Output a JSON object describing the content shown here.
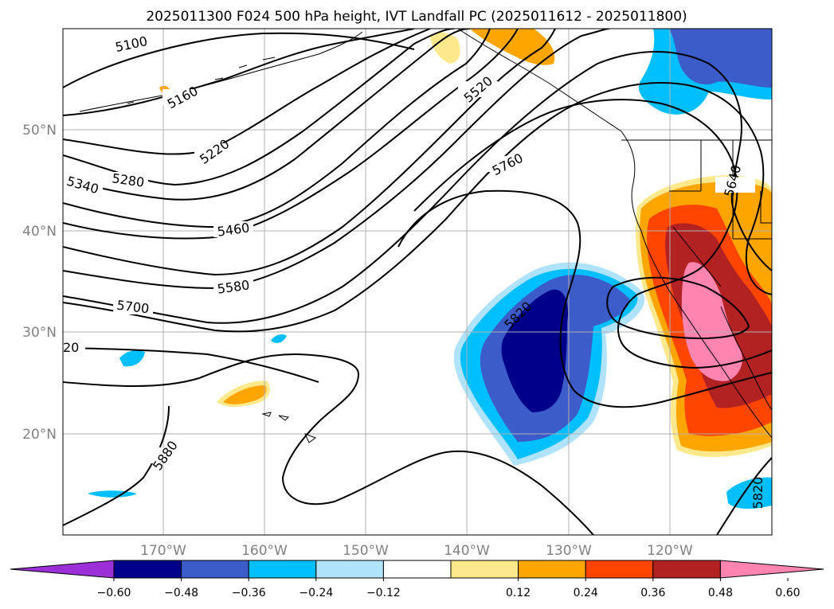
{
  "title": "2025011300 F024 500 hPa height, IVT Landfall PC (2025011612 - 2025011800)",
  "map": {
    "lon_range": [
      -180,
      -110
    ],
    "lat_range": [
      10,
      60
    ],
    "lat_labels": [
      "50°N",
      "40°N",
      "30°N",
      "20°N"
    ],
    "lon_labels": [
      "170°W",
      "160°W",
      "150°W",
      "140°W",
      "130°W",
      "120°W"
    ],
    "contour_labels": [
      "5100",
      "5160",
      "5220",
      "5280",
      "5340",
      "5460",
      "5520",
      "5580",
      "5640",
      "5700",
      "5760",
      "5820",
      "5820",
      "5880",
      "20"
    ],
    "gridlines": true,
    "contour_color": "#000000"
  },
  "colorbar": {
    "ticks": [
      "−0.60",
      "−0.48",
      "−0.36",
      "−0.24",
      "−0.12",
      "0.12",
      "0.24",
      "0.36",
      "0.48",
      "0.60"
    ],
    "colors": [
      "#9b30d9",
      "#00008b",
      "#3b5cc9",
      "#00bfff",
      "#aee3fb",
      "#ffffff",
      "#fde98c",
      "#ffa500",
      "#ff4500",
      "#b22222",
      "#ff85b0"
    ]
  }
}
